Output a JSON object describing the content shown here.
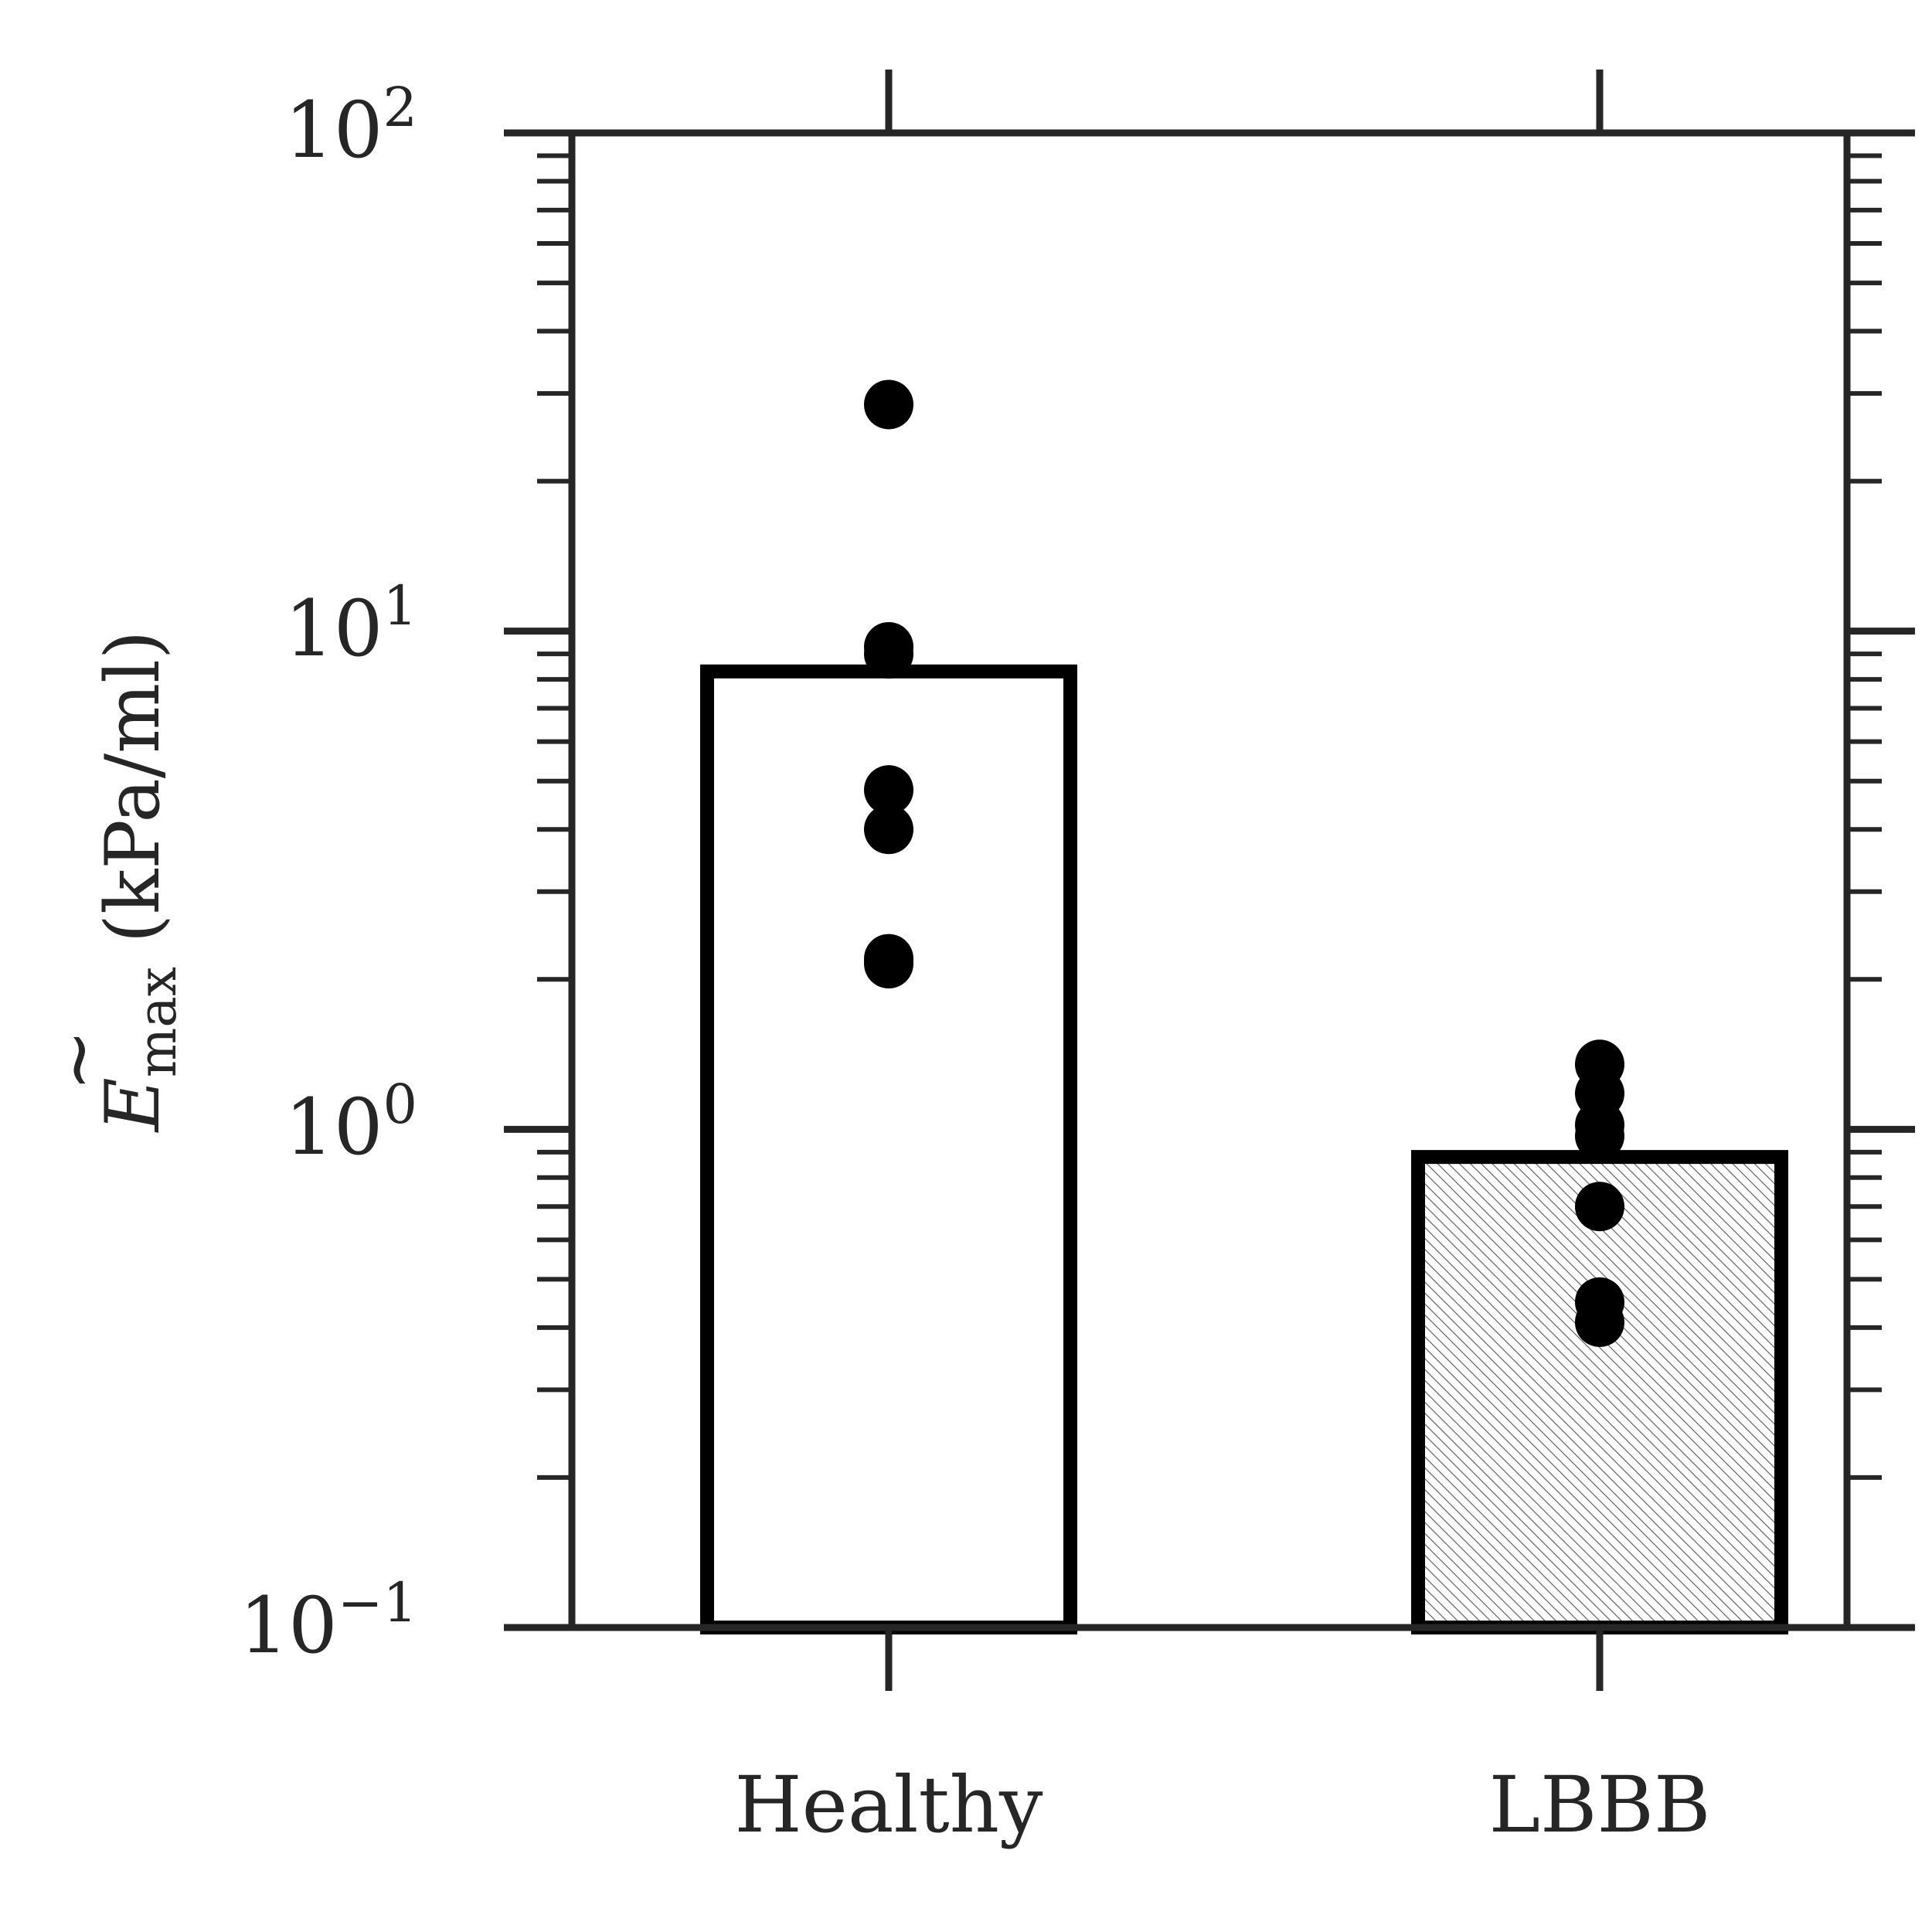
{
  "chart_data": {
    "type": "bar",
    "categories": [
      "Healthy",
      "LBBB"
    ],
    "values": [
      8.3,
      0.88
    ],
    "points": [
      [
        28.5,
        9.3,
        9.0,
        4.8,
        4.0,
        2.2,
        2.15
      ],
      [
        1.35,
        1.18,
        1.02,
        0.97,
        0.7,
        0.45,
        0.41
      ]
    ],
    "ylabel": {
      "symbol": "E",
      "accent": "~",
      "subscript": "max",
      "units": "(kPa/ml)"
    },
    "yscale": "log",
    "ylim": [
      0.1,
      100
    ],
    "yticks": [
      {
        "base": "10",
        "exp": "−1",
        "value": 0.1
      },
      {
        "base": "10",
        "exp": "0",
        "value": 1
      },
      {
        "base": "10",
        "exp": "1",
        "value": 10
      },
      {
        "base": "10",
        "exp": "2",
        "value": 100
      }
    ],
    "bar_styles": [
      "plain",
      "hatched"
    ],
    "colors": {
      "axis": "#262626",
      "bar_edge": "#000000",
      "bar_fill": "#ffffff",
      "points": "#000000",
      "hatch": "#666666"
    },
    "grid": false,
    "legend": "none"
  }
}
